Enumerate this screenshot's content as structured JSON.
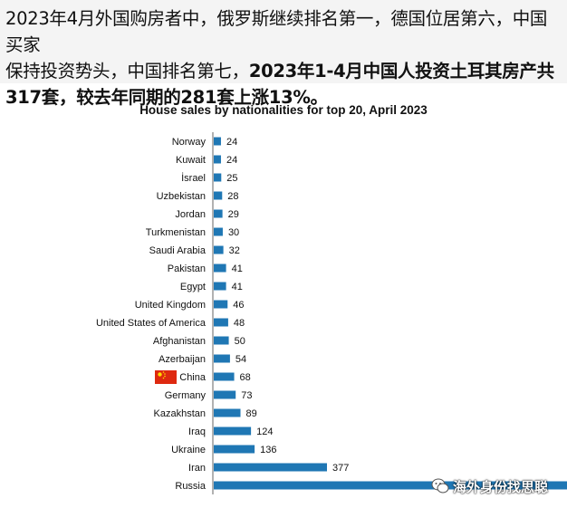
{
  "header": {
    "line1": "2023年4月外国购房者中，俄罗斯继续排名第一，德国位居第六，中国买家",
    "line2_normal": "保持投资势头，中国排名第七，",
    "line2_bold": "2023年1-4月中国人投资土耳其房产共",
    "line3_bold": "317套，较去年同期的281套上涨13%。"
  },
  "watermark": {
    "icon": "wechat-icon",
    "text": "海外身份找思聪"
  },
  "chart_data": {
    "type": "bar",
    "orientation": "horizontal",
    "title": "House sales by nationalities for top 20, April 2023",
    "xlabel": "",
    "ylabel": "",
    "bar_color": "#1f77b4",
    "grid": false,
    "categories": [
      "Norway",
      "Kuwait",
      "İsrael",
      "Uzbekistan",
      "Jordan",
      "Turkmenistan",
      "Saudi Arabia",
      "Pakistan",
      "Egypt",
      "United Kingdom",
      "United States of America",
      "Afghanistan",
      "Azerbaijan",
      "China",
      "Germany",
      "Kazakhstan",
      "Iraq",
      "Ukraine",
      "Iran",
      "Russia"
    ],
    "values": [
      24,
      24,
      25,
      28,
      29,
      30,
      32,
      41,
      41,
      46,
      48,
      50,
      54,
      68,
      73,
      89,
      124,
      136,
      377,
      null
    ],
    "value_labels": [
      "24",
      "24",
      "25",
      "28",
      "29",
      "30",
      "32",
      "41",
      "41",
      "46",
      "48",
      "50",
      "54",
      "68",
      "73",
      "89",
      "124",
      "136",
      "377",
      ""
    ],
    "flag_category": "China"
  }
}
